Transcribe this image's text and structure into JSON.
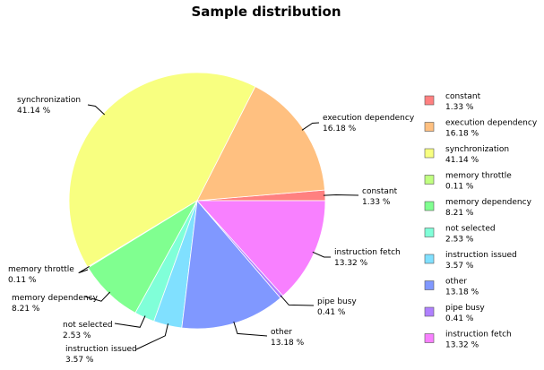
{
  "chart_data": {
    "type": "pie",
    "title": "Sample distribution",
    "legend_position": "right",
    "start_angle_deg": 0,
    "direction": "counterclockwise",
    "slices": [
      {
        "label": "constant",
        "value": 1.33,
        "value_text": "1.33 %",
        "color": "#ff8080"
      },
      {
        "label": "execution dependency",
        "value": 16.18,
        "value_text": "16.18 %",
        "color": "#ffc080"
      },
      {
        "label": "synchronization",
        "value": 41.14,
        "value_text": "41.14 %",
        "color": "#f8ff80"
      },
      {
        "label": "memory throttle",
        "value": 0.11,
        "value_text": "0.11 %",
        "color": "#c0ff80"
      },
      {
        "label": "memory dependency",
        "value": 8.21,
        "value_text": "8.21 %",
        "color": "#80ff90"
      },
      {
        "label": "not selected",
        "value": 2.53,
        "value_text": "2.53 %",
        "color": "#80ffd8"
      },
      {
        "label": "instruction issued",
        "value": 3.57,
        "value_text": "3.57 %",
        "color": "#80e0ff"
      },
      {
        "label": "other",
        "value": 13.18,
        "value_text": "13.18 %",
        "color": "#8098ff"
      },
      {
        "label": "pipe busy",
        "value": 0.41,
        "value_text": "0.41 %",
        "color": "#b080ff"
      },
      {
        "label": "instruction fetch",
        "value": 13.32,
        "value_text": "13.32 %",
        "color": "#f880ff"
      }
    ]
  }
}
